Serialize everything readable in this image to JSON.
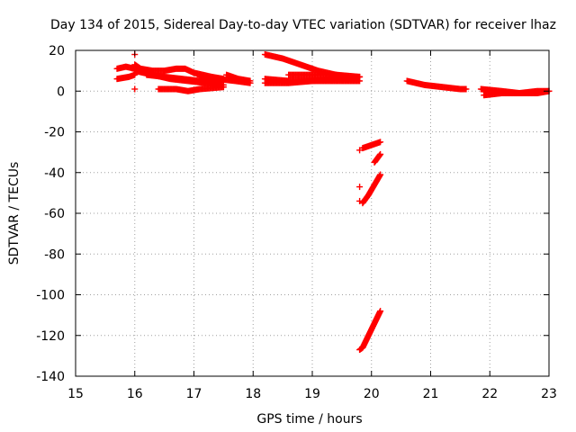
{
  "chart_data": {
    "type": "scatter",
    "title": "Day 134 of 2015, Sidereal Day-to-day VTEC variation (SDTVAR) for receiver lhaz",
    "xlabel": "GPS time / hours",
    "ylabel": "SDTVAR / TECUs",
    "xlim": [
      15,
      23
    ],
    "ylim": [
      -140,
      20
    ],
    "xticks": [
      "15",
      "16",
      "17",
      "18",
      "19",
      "20",
      "21",
      "22",
      "23"
    ],
    "yticks": [
      "20",
      "0",
      "-20",
      "-40",
      "-60",
      "-80",
      "-100",
      "-120",
      "-140"
    ],
    "grid": true,
    "marker": "+",
    "marker_color": "#ff0000",
    "tracks": [
      {
        "x": [
          15.7,
          15.85,
          16.0
        ],
        "y": [
          11,
          12,
          11
        ]
      },
      {
        "x": [
          15.7,
          15.9,
          16.0
        ],
        "y": [
          6,
          7,
          8
        ]
      },
      {
        "x": [
          16.0,
          16.1,
          16.3,
          16.5,
          16.7,
          16.85,
          17.0,
          17.3,
          17.5
        ],
        "y": [
          13,
          11,
          10,
          10,
          11,
          11,
          9,
          7,
          6
        ]
      },
      {
        "x": [
          16.0,
          16.3,
          16.6,
          16.9,
          17.2,
          17.5
        ],
        "y": [
          10,
          8,
          6,
          5,
          4,
          3
        ]
      },
      {
        "x": [
          16.4,
          16.7,
          16.9,
          17.1,
          17.5
        ],
        "y": [
          1,
          1,
          0,
          1,
          2
        ]
      },
      {
        "x": [
          16.2,
          16.5,
          16.8,
          17.1,
          17.4
        ],
        "y": [
          8,
          7,
          6,
          5,
          4
        ]
      },
      {
        "x": [
          17.1,
          17.4,
          17.7,
          17.95
        ],
        "y": [
          7,
          6,
          5,
          4
        ]
      },
      {
        "x": [
          17.55,
          17.75,
          17.95
        ],
        "y": [
          8,
          6,
          5
        ]
      },
      {
        "x": [
          18.2,
          18.5,
          18.8,
          19.1,
          19.4,
          19.7
        ],
        "y": [
          18,
          16,
          13,
          10,
          8,
          6
        ]
      },
      {
        "x": [
          18.2,
          18.6,
          19.0,
          19.4,
          19.8
        ],
        "y": [
          6,
          5,
          5,
          6,
          7
        ]
      },
      {
        "x": [
          18.2,
          18.6,
          19.0,
          19.4,
          19.8
        ],
        "y": [
          4,
          4,
          5,
          5,
          5
        ]
      },
      {
        "x": [
          18.6,
          19.0,
          19.4,
          19.8
        ],
        "y": [
          8,
          8,
          8,
          7
        ]
      },
      {
        "x": [
          19.85,
          19.95,
          20.05,
          20.15
        ],
        "y": [
          -28,
          -27,
          -26,
          -25
        ]
      },
      {
        "x": [
          20.05,
          20.1,
          20.15
        ],
        "y": [
          -35,
          -33,
          -31
        ]
      },
      {
        "x": [
          19.85,
          19.95,
          20.05,
          20.15
        ],
        "y": [
          -55,
          -51,
          -46,
          -41
        ]
      },
      {
        "x": [
          19.8,
          19.85,
          19.95,
          20.05,
          20.15
        ],
        "y": [
          -127,
          -126,
          -120,
          -114,
          -108
        ]
      },
      {
        "x": [
          20.6,
          20.9,
          21.2,
          21.5,
          21.6
        ],
        "y": [
          5,
          3,
          2,
          1,
          1
        ]
      },
      {
        "x": [
          21.85,
          22.2,
          22.5,
          22.8,
          23.0
        ],
        "y": [
          1,
          0,
          -1,
          -1,
          0
        ]
      },
      {
        "x": [
          21.9,
          22.2,
          22.5,
          22.8,
          23.0
        ],
        "y": [
          -2,
          -1,
          -1,
          0,
          0
        ]
      }
    ],
    "points": [
      {
        "x": 16.0,
        "y": 18
      },
      {
        "x": 16.0,
        "y": 1
      },
      {
        "x": 19.8,
        "y": -29
      },
      {
        "x": 19.8,
        "y": -47
      },
      {
        "x": 19.8,
        "y": -54
      }
    ]
  }
}
